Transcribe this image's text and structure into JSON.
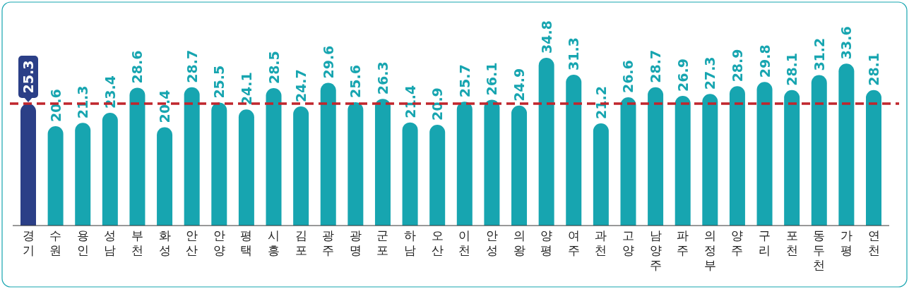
{
  "chart_data": {
    "type": "bar",
    "categories": [
      "경기",
      "수원",
      "용인",
      "성남",
      "부천",
      "화성",
      "안산",
      "안양",
      "평택",
      "시흥",
      "김포",
      "광주",
      "광명",
      "군포",
      "하남",
      "오산",
      "이천",
      "안성",
      "의왕",
      "양평",
      "여주",
      "과천",
      "고양",
      "남양주",
      "파주",
      "의정부",
      "양주",
      "구리",
      "포천",
      "동두천",
      "가평",
      "연천"
    ],
    "values": [
      25.3,
      20.6,
      21.3,
      23.4,
      28.6,
      20.4,
      28.7,
      25.5,
      24.1,
      28.5,
      24.7,
      29.6,
      25.6,
      26.3,
      21.4,
      20.9,
      25.7,
      26.1,
      24.9,
      34.8,
      31.3,
      21.2,
      26.6,
      28.7,
      26.9,
      27.3,
      28.9,
      29.8,
      28.1,
      31.2,
      33.6,
      28.1
    ],
    "colors": [
      "#2b3f87",
      "#17a5b0",
      "#17a5b0",
      "#17a5b0",
      "#17a5b0",
      "#17a5b0",
      "#17a5b0",
      "#17a5b0",
      "#17a5b0",
      "#17a5b0",
      "#17a5b0",
      "#17a5b0",
      "#17a5b0",
      "#17a5b0",
      "#17a5b0",
      "#17a5b0",
      "#17a5b0",
      "#17a5b0",
      "#17a5b0",
      "#17a5b0",
      "#17a5b0",
      "#17a5b0",
      "#17a5b0",
      "#17a5b0",
      "#17a5b0",
      "#17a5b0",
      "#17a5b0",
      "#17a5b0",
      "#17a5b0",
      "#17a5b0",
      "#17a5b0",
      "#17a5b0"
    ],
    "data_labels": true,
    "ref_lines": [
      {
        "axis": "y",
        "value": 25.3,
        "color": "#c0262d",
        "line_style": "dashed"
      }
    ]
  }
}
